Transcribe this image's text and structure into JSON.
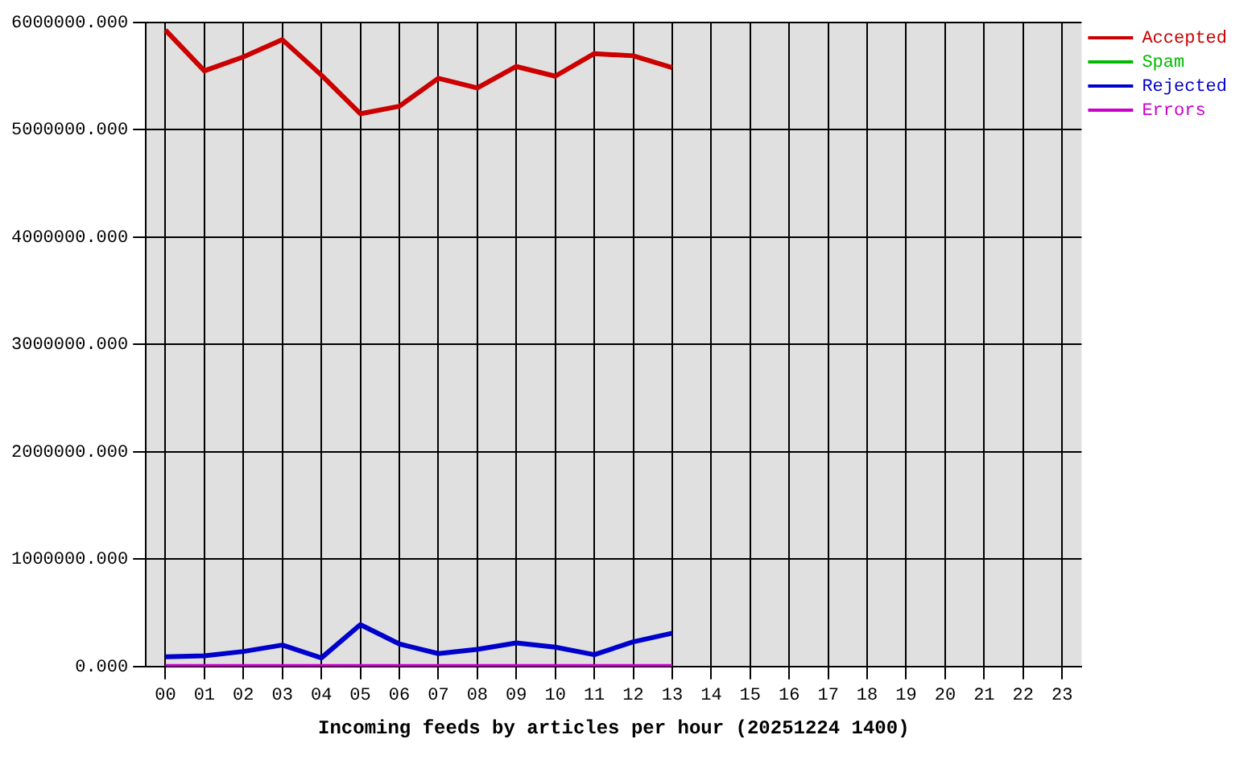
{
  "chart_data": {
    "type": "line",
    "xlabel": "Incoming feeds by articles per hour (20251224 1400)",
    "categories": [
      "00",
      "01",
      "02",
      "03",
      "04",
      "05",
      "06",
      "07",
      "08",
      "09",
      "10",
      "11",
      "12",
      "13",
      "14",
      "15",
      "16",
      "17",
      "18",
      "19",
      "20",
      "21",
      "22",
      "23"
    ],
    "series": [
      {
        "name": "Accepted",
        "color": "#cc0000",
        "values": [
          5930000,
          5550000,
          5680000,
          5840000,
          5510000,
          5150000,
          5220000,
          5480000,
          5390000,
          5590000,
          5500000,
          5710000,
          5690000,
          5580000,
          null,
          null,
          null,
          null,
          null,
          null,
          null,
          null,
          null,
          null
        ]
      },
      {
        "name": "Spam",
        "color": "#00bb00",
        "values": [
          null,
          null,
          null,
          null,
          null,
          null,
          null,
          null,
          null,
          null,
          null,
          null,
          null,
          null,
          null,
          null,
          null,
          null,
          null,
          null,
          null,
          null,
          null,
          null
        ]
      },
      {
        "name": "Rejected",
        "color": "#0000cc",
        "values": [
          90000,
          100000,
          140000,
          200000,
          80000,
          390000,
          210000,
          120000,
          160000,
          220000,
          180000,
          110000,
          230000,
          310000,
          null,
          null,
          null,
          null,
          null,
          null,
          null,
          null,
          null,
          null
        ]
      },
      {
        "name": "Errors",
        "color": "#cc00cc",
        "values": [
          0,
          0,
          0,
          0,
          0,
          0,
          0,
          0,
          0,
          0,
          0,
          0,
          0,
          0,
          null,
          null,
          null,
          null,
          null,
          null,
          null,
          null,
          null,
          null
        ]
      }
    ],
    "ylim": [
      0,
      6000000
    ],
    "yticks": [
      {
        "value": 0,
        "label": "0.000"
      },
      {
        "value": 1000000,
        "label": "1000000.000"
      },
      {
        "value": 2000000,
        "label": "2000000.000"
      },
      {
        "value": 3000000,
        "label": "3000000.000"
      },
      {
        "value": 4000000,
        "label": "4000000.000"
      },
      {
        "value": 5000000,
        "label": "5000000.000"
      },
      {
        "value": 6000000,
        "label": "6000000.000"
      }
    ],
    "grid": true,
    "legend": "top right",
    "marker": "none",
    "line_style": "solid"
  }
}
